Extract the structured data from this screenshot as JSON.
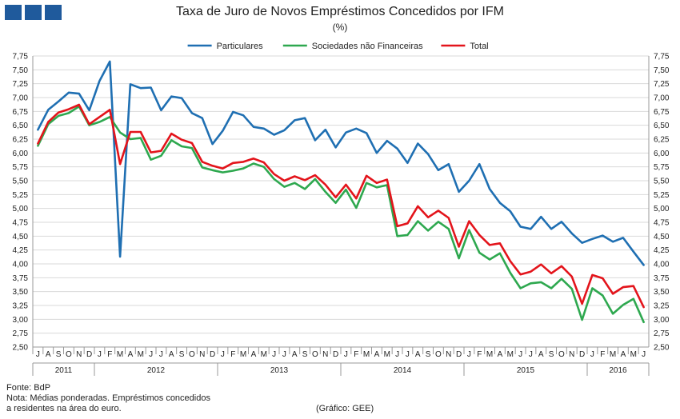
{
  "header": {
    "title": "Taxa de Juro de Novos Empréstimos Concedidos por IFM",
    "subtitle": "(%)"
  },
  "footer": {
    "source": "Fonte: BdP",
    "note_line1": "Nota: Médias ponderadas. Empréstimos concedidos",
    "note_line2": "a residentes na área do euro.",
    "credit": "(Gráfico: GEE)"
  },
  "colors": {
    "particulares": "#1f6fb2",
    "sociedades": "#2ea84f",
    "total": "#e3141b",
    "logo": "#1f5a9c",
    "grid": "#d9d9d9"
  },
  "chart_data": {
    "type": "line",
    "title": "Taxa de Juro de Novos Empréstimos Concedidos por IFM",
    "ylabel": "%",
    "ylim": [
      2.5,
      7.75
    ],
    "yticks": [
      "7,75",
      "7,50",
      "7,25",
      "7,00",
      "6,75",
      "6,50",
      "6,25",
      "6,00",
      "5,75",
      "5,50",
      "5,25",
      "5,00",
      "4,75",
      "4,50",
      "4,25",
      "4,00",
      "3,75",
      "3,50",
      "3,25",
      "3,00",
      "2,75",
      "2,50"
    ],
    "grid": "horizontal",
    "legend_position": "top",
    "months": [
      "J",
      "A",
      "S",
      "O",
      "N",
      "D",
      "J",
      "F",
      "M",
      "A",
      "M",
      "J",
      "J",
      "A",
      "S",
      "O",
      "N",
      "D",
      "J",
      "F",
      "M",
      "A",
      "M",
      "J",
      "J",
      "A",
      "S",
      "O",
      "N",
      "D",
      "J",
      "F",
      "M",
      "A",
      "M",
      "J",
      "J",
      "A",
      "S",
      "O",
      "N",
      "D",
      "J",
      "F",
      "M",
      "A",
      "M",
      "J",
      "J",
      "A",
      "S",
      "O",
      "N",
      "D",
      "J",
      "F",
      "M",
      "A",
      "M",
      "J"
    ],
    "years": [
      {
        "label": "2011",
        "start": 0,
        "end": 6
      },
      {
        "label": "2012",
        "start": 6,
        "end": 18
      },
      {
        "label": "2013",
        "start": 18,
        "end": 30
      },
      {
        "label": "2014",
        "start": 30,
        "end": 42
      },
      {
        "label": "2015",
        "start": 42,
        "end": 54
      },
      {
        "label": "2016",
        "start": 54,
        "end": 60
      }
    ],
    "series": [
      {
        "name": "Particulares",
        "color": "#1f6fb2",
        "values": [
          6.42,
          6.78,
          6.93,
          7.09,
          7.07,
          6.77,
          7.3,
          7.65,
          4.13,
          7.24,
          7.17,
          7.18,
          6.77,
          7.02,
          6.99,
          6.72,
          6.63,
          6.16,
          6.4,
          6.74,
          6.68,
          6.47,
          6.44,
          6.33,
          6.41,
          6.59,
          6.63,
          6.23,
          6.42,
          6.1,
          6.37,
          6.44,
          6.36,
          6.0,
          6.22,
          6.08,
          5.82,
          6.17,
          5.98,
          5.69,
          5.8,
          5.3,
          5.5,
          5.8,
          5.35,
          5.1,
          4.95,
          4.67,
          4.63,
          4.85,
          4.63,
          4.76,
          4.55,
          4.38,
          4.45,
          4.51,
          4.4,
          4.47,
          4.22,
          3.98
        ]
      },
      {
        "name": "Sociedades não Financeiras",
        "color": "#2ea84f",
        "values": [
          6.13,
          6.52,
          6.67,
          6.72,
          6.84,
          6.5,
          6.56,
          6.65,
          6.37,
          6.25,
          6.27,
          5.88,
          5.95,
          6.23,
          6.12,
          6.09,
          5.74,
          5.69,
          5.65,
          5.68,
          5.72,
          5.81,
          5.75,
          5.53,
          5.39,
          5.46,
          5.35,
          5.53,
          5.3,
          5.1,
          5.34,
          5.01,
          5.46,
          5.38,
          5.42,
          4.5,
          4.52,
          4.77,
          4.6,
          4.76,
          4.63,
          4.1,
          4.61,
          4.2,
          4.08,
          4.19,
          3.84,
          3.56,
          3.65,
          3.67,
          3.56,
          3.73,
          3.55,
          2.99,
          3.56,
          3.43,
          3.1,
          3.26,
          3.37,
          2.95
        ]
      },
      {
        "name": "Total",
        "color": "#e3141b",
        "values": [
          6.17,
          6.56,
          6.73,
          6.79,
          6.87,
          6.52,
          6.65,
          6.78,
          5.8,
          6.38,
          6.38,
          6.01,
          6.04,
          6.35,
          6.24,
          6.18,
          5.84,
          5.77,
          5.72,
          5.82,
          5.84,
          5.9,
          5.83,
          5.62,
          5.5,
          5.58,
          5.51,
          5.6,
          5.43,
          5.2,
          5.43,
          5.18,
          5.59,
          5.46,
          5.52,
          4.68,
          4.73,
          5.04,
          4.84,
          4.96,
          4.83,
          4.31,
          4.77,
          4.52,
          4.34,
          4.37,
          4.05,
          3.81,
          3.86,
          3.99,
          3.83,
          3.96,
          3.77,
          3.28,
          3.8,
          3.74,
          3.46,
          3.58,
          3.6,
          3.22
        ]
      }
    ]
  }
}
